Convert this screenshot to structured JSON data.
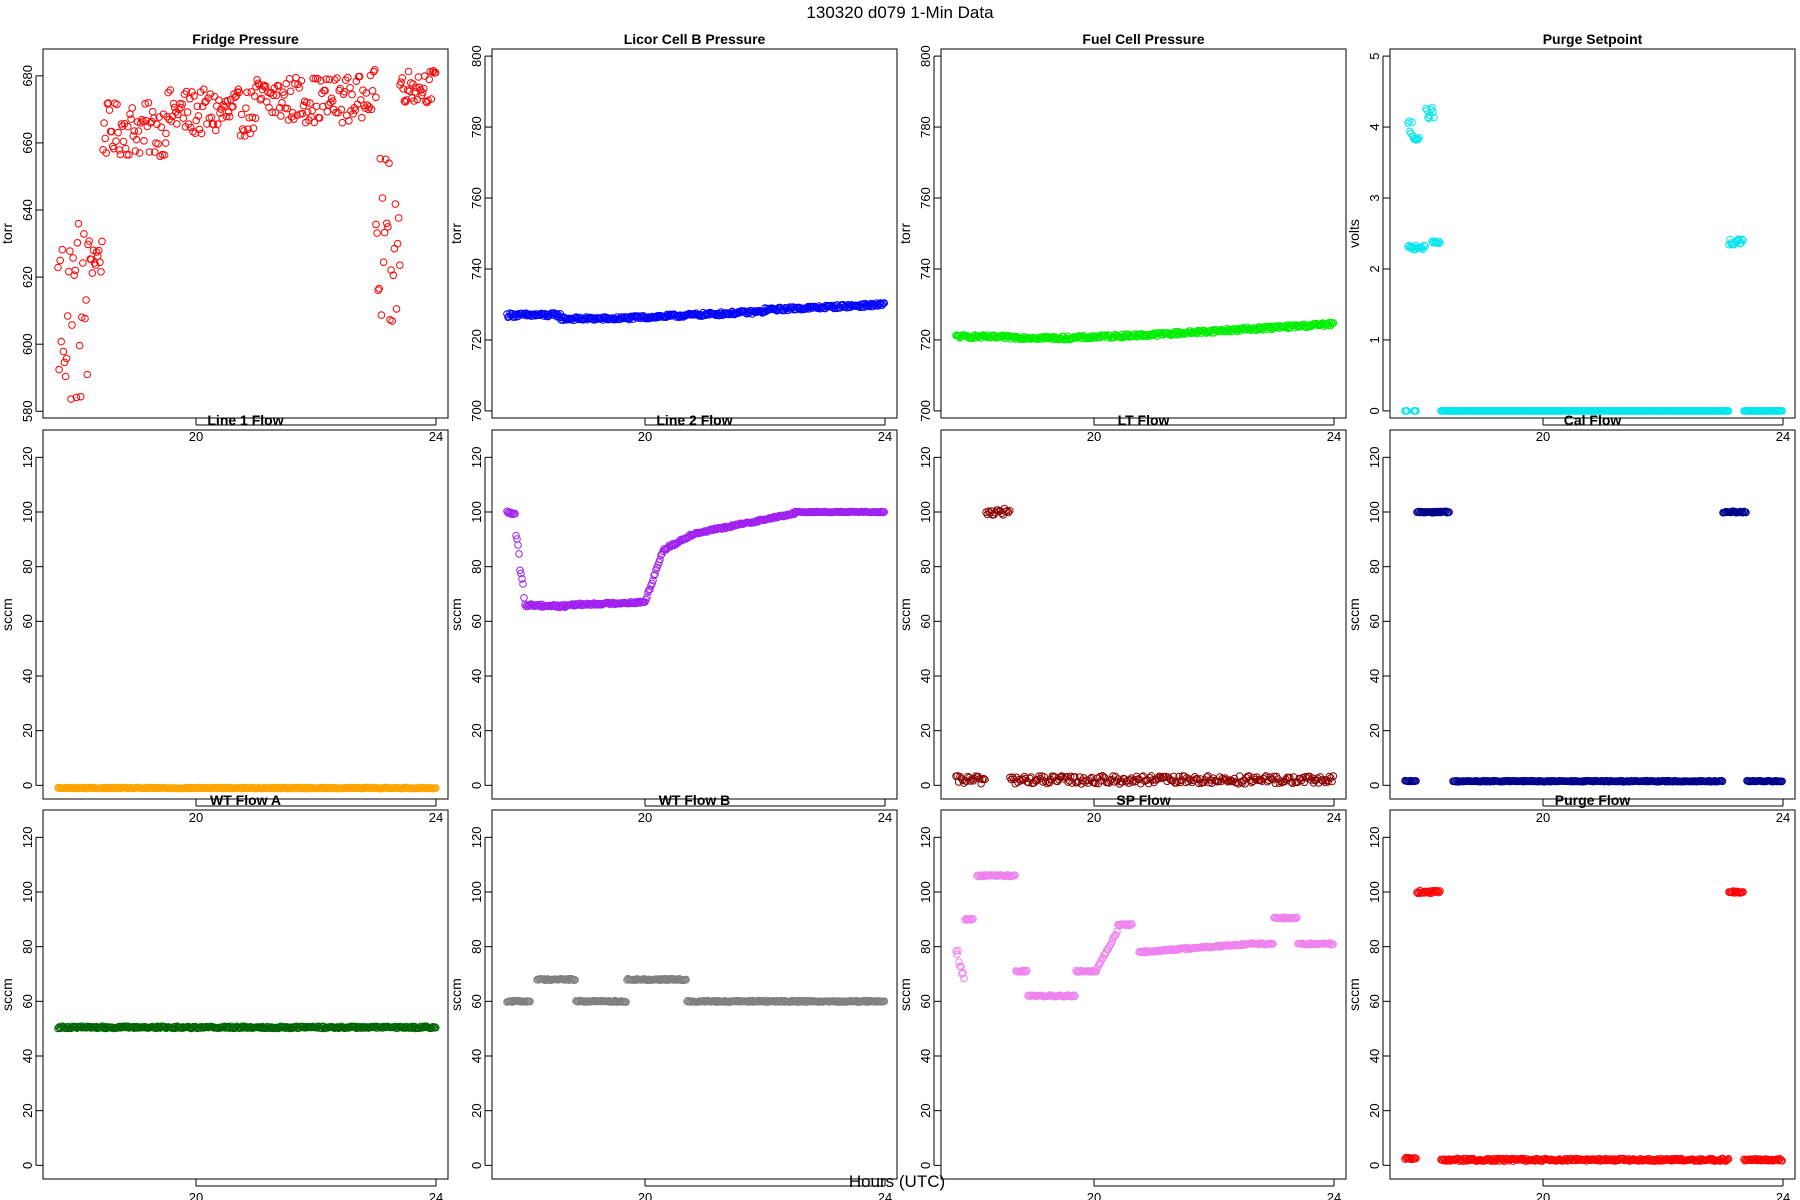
{
  "figure": {
    "title": "130320   d079   1-Min Data",
    "xlabel": "Hours (UTC)"
  },
  "chart_data": [
    {
      "type": "scatter",
      "title": "Fridge Pressure",
      "ylabel": "torr",
      "xlim": [
        17.45,
        24.2
      ],
      "ylim": [
        578,
        688
      ],
      "xticks": [
        20,
        24
      ],
      "yticks": [
        580,
        600,
        620,
        640,
        660,
        680
      ],
      "color": "#ff0000",
      "series": [
        {
          "segments": [
            {
              "x0": 17.7,
              "x1": 18.2,
              "y": 610,
              "noise": 30
            },
            {
              "x0": 18.2,
              "x1": 18.45,
              "y": 626,
              "noise": 6
            },
            {
              "x0": 18.45,
              "x1": 19.5,
              "y": 664,
              "noise": 8
            },
            {
              "x0": 19.5,
              "x1": 21.0,
              "y": 669,
              "noise": 7
            },
            {
              "x0": 21.0,
              "x1": 22.8,
              "y": 673,
              "noise": 7
            },
            {
              "x0": 22.8,
              "x1": 23.0,
              "y": 676,
              "noise": 6
            },
            {
              "x0": 23.0,
              "x1": 23.4,
              "y": 630,
              "noise": 26
            },
            {
              "x0": 23.4,
              "x1": 24.0,
              "y": 677,
              "noise": 5
            }
          ],
          "step": 0.018
        }
      ]
    },
    {
      "type": "scatter",
      "title": "Licor Cell B Pressure",
      "ylabel": "torr",
      "xlim": [
        17.45,
        24.2
      ],
      "ylim": [
        698,
        802
      ],
      "xticks": [
        20,
        24
      ],
      "yticks": [
        700,
        720,
        740,
        760,
        780,
        800
      ],
      "color": "#0000ff",
      "series": [
        {
          "segments": [
            {
              "x0": 17.7,
              "x1": 18.6,
              "y0": 727,
              "y1": 727,
              "noise": 0.6
            },
            {
              "x0": 18.6,
              "x1": 19.5,
              "y0": 726,
              "y1": 726,
              "noise": 0.5
            },
            {
              "x0": 19.5,
              "x1": 22.0,
              "y0": 726,
              "y1": 728,
              "noise": 0.5
            },
            {
              "x0": 22.0,
              "x1": 24.0,
              "y0": 728.5,
              "y1": 730,
              "noise": 0.5
            }
          ],
          "step": 0.0167
        }
      ]
    },
    {
      "type": "scatter",
      "title": "Fuel Cell Pressure",
      "ylabel": "torr",
      "xlim": [
        17.45,
        24.2
      ],
      "ylim": [
        698,
        802
      ],
      "xticks": [
        20,
        24
      ],
      "yticks": [
        700,
        720,
        740,
        760,
        780,
        800
      ],
      "color": "#00ee00",
      "series": [
        {
          "segments": [
            {
              "x0": 17.7,
              "x1": 19.5,
              "y0": 721,
              "y1": 720.5,
              "noise": 0.5
            },
            {
              "x0": 19.5,
              "x1": 21.0,
              "y0": 720.5,
              "y1": 721.5,
              "noise": 0.5
            },
            {
              "x0": 21.0,
              "x1": 24.0,
              "y0": 721.5,
              "y1": 724.5,
              "noise": 0.5
            }
          ],
          "step": 0.0167
        }
      ]
    },
    {
      "type": "scatter",
      "title": "Purge Setpoint",
      "ylabel": "volts",
      "xlim": [
        17.45,
        24.2
      ],
      "ylim": [
        -0.1,
        5.1
      ],
      "xticks": [
        20,
        24
      ],
      "yticks": [
        0,
        1,
        2,
        3,
        4,
        5
      ],
      "color": "#00e5ee",
      "series": [
        {
          "segments": [
            {
              "x0": 17.7,
              "x1": 17.75,
              "y": 0,
              "noise": 0
            },
            {
              "x0": 17.85,
              "x1": 17.9,
              "y": 0,
              "noise": 0
            },
            {
              "x0": 17.75,
              "x1": 17.85,
              "y": 4.0,
              "noise": 0.15
            },
            {
              "x0": 17.85,
              "x1": 17.95,
              "y": 3.85,
              "noise": 0.05
            },
            {
              "x0": 17.75,
              "x1": 18.05,
              "y": 2.3,
              "noise": 0.03
            },
            {
              "x0": 18.05,
              "x1": 18.2,
              "y": 4.2,
              "noise": 0.08
            },
            {
              "x0": 18.15,
              "x1": 18.3,
              "y": 2.37,
              "noise": 0.03
            },
            {
              "x0": 18.3,
              "x1": 23.1,
              "y": 0,
              "noise": 0
            },
            {
              "x0": 23.1,
              "x1": 23.35,
              "y": 2.38,
              "noise": 0.05
            },
            {
              "x0": 23.35,
              "x1": 24.0,
              "y": 0,
              "noise": 0
            }
          ],
          "step": 0.0167
        }
      ]
    },
    {
      "type": "scatter",
      "title": "Line 1 Flow",
      "ylabel": "sccm",
      "xlim": [
        17.45,
        24.2
      ],
      "ylim": [
        -5,
        130
      ],
      "xticks": [
        20,
        24
      ],
      "yticks": [
        0,
        20,
        40,
        60,
        80,
        100,
        120
      ],
      "color": "#ffa500",
      "series": [
        {
          "segments": [
            {
              "x0": 17.7,
              "x1": 24.0,
              "y": -1,
              "noise": 0.2
            }
          ],
          "step": 0.0167
        }
      ]
    },
    {
      "type": "scatter",
      "title": "Line 2 Flow",
      "ylabel": "sccm",
      "xlim": [
        17.45,
        24.2
      ],
      "ylim": [
        -5,
        130
      ],
      "xticks": [
        20,
        24
      ],
      "yticks": [
        0,
        20,
        40,
        60,
        80,
        100,
        120
      ],
      "color": "#a020f0",
      "series": [
        {
          "segments": [
            {
              "x0": 17.7,
              "x1": 17.85,
              "y0": 100,
              "y1": 99,
              "noise": 0.3
            },
            {
              "x0": 17.85,
              "x1": 18.0,
              "y0": 92,
              "y1": 66,
              "noise": 2
            },
            {
              "x0": 18.0,
              "x1": 18.7,
              "y0": 66,
              "y1": 65.5,
              "noise": 0.6
            },
            {
              "x0": 18.7,
              "x1": 20.0,
              "y0": 66,
              "y1": 67,
              "noise": 0.4
            },
            {
              "x0": 20.0,
              "x1": 20.3,
              "y0": 67,
              "y1": 86,
              "noise": 0.6
            },
            {
              "x0": 20.3,
              "x1": 20.8,
              "y0": 86,
              "y1": 92,
              "noise": 0.5
            },
            {
              "x0": 20.8,
              "x1": 22.5,
              "y0": 92,
              "y1": 99.5,
              "noise": 0.4
            },
            {
              "x0": 22.5,
              "x1": 24.0,
              "y0": 100,
              "y1": 100,
              "noise": 0.2
            }
          ],
          "step": 0.0167
        }
      ]
    },
    {
      "type": "scatter",
      "title": "LT Flow",
      "ylabel": "sccm",
      "xlim": [
        17.45,
        24.2
      ],
      "ylim": [
        -5,
        130
      ],
      "xticks": [
        20,
        24
      ],
      "yticks": [
        0,
        20,
        40,
        60,
        80,
        100,
        120
      ],
      "color": "#8b0000",
      "series": [
        {
          "segments": [
            {
              "x0": 17.7,
              "x1": 18.2,
              "y": 2,
              "noise": 1.5
            },
            {
              "x0": 18.2,
              "x1": 18.6,
              "y": 100,
              "noise": 1.5
            },
            {
              "x0": 18.6,
              "x1": 24.0,
              "y": 2,
              "noise": 1.5
            }
          ],
          "step": 0.022
        }
      ]
    },
    {
      "type": "scatter",
      "title": "Cal Flow",
      "ylabel": "sccm",
      "xlim": [
        17.45,
        24.2
      ],
      "ylim": [
        -5,
        130
      ],
      "xticks": [
        20,
        24
      ],
      "yticks": [
        0,
        20,
        40,
        60,
        80,
        100,
        120
      ],
      "color": "#00008b",
      "series": [
        {
          "segments": [
            {
              "x0": 17.7,
              "x1": 17.9,
              "y": 1.5,
              "noise": 0.2
            },
            {
              "x0": 17.9,
              "x1": 18.45,
              "y": 100,
              "noise": 0.3
            },
            {
              "x0": 18.5,
              "x1": 23.0,
              "y": 1.5,
              "noise": 0.2
            },
            {
              "x0": 23.0,
              "x1": 23.4,
              "y": 100,
              "noise": 0.3
            },
            {
              "x0": 23.4,
              "x1": 24.0,
              "y": 1.5,
              "noise": 0.2
            }
          ],
          "step": 0.0167
        }
      ]
    },
    {
      "type": "scatter",
      "title": "WT Flow A",
      "ylabel": "sccm",
      "xlim": [
        17.45,
        24.2
      ],
      "ylim": [
        -5,
        130
      ],
      "xticks": [
        20,
        24
      ],
      "yticks": [
        0,
        20,
        40,
        60,
        80,
        100,
        120
      ],
      "color": "#006400",
      "series": [
        {
          "segments": [
            {
              "x0": 17.7,
              "x1": 24.0,
              "y": 50.5,
              "noise": 0.4
            }
          ],
          "step": 0.0167
        }
      ]
    },
    {
      "type": "scatter",
      "title": "WT Flow B",
      "ylabel": "sccm",
      "xlim": [
        17.45,
        24.2
      ],
      "ylim": [
        -5,
        130
      ],
      "xticks": [
        20,
        24
      ],
      "yticks": [
        0,
        20,
        40,
        60,
        80,
        100,
        120
      ],
      "color": "#808080",
      "series": [
        {
          "segments": [
            {
              "x0": 17.7,
              "x1": 18.1,
              "y": 60,
              "noise": 0.3
            },
            {
              "x0": 18.2,
              "x1": 18.85,
              "y": 68,
              "noise": 0.3
            },
            {
              "x0": 18.85,
              "x1": 19.7,
              "y": 60,
              "noise": 0.3
            },
            {
              "x0": 19.7,
              "x1": 20.7,
              "y": 68,
              "noise": 0.3
            },
            {
              "x0": 20.7,
              "x1": 24.0,
              "y": 60,
              "noise": 0.3
            }
          ],
          "step": 0.0167
        }
      ]
    },
    {
      "type": "scatter",
      "title": "SP Flow",
      "ylabel": "sccm",
      "xlim": [
        17.45,
        24.2
      ],
      "ylim": [
        -5,
        130
      ],
      "xticks": [
        20,
        24
      ],
      "yticks": [
        0,
        20,
        40,
        60,
        80,
        100,
        120
      ],
      "color": "#ee82ee",
      "series": [
        {
          "segments": [
            {
              "x0": 17.7,
              "x1": 17.85,
              "y0": 80,
              "y1": 66,
              "noise": 2
            },
            {
              "x0": 17.85,
              "x1": 18.0,
              "y": 90,
              "noise": 0.3
            },
            {
              "x0": 18.05,
              "x1": 18.7,
              "y": 106,
              "noise": 0.3
            },
            {
              "x0": 18.7,
              "x1": 18.9,
              "y": 71,
              "noise": 0.3
            },
            {
              "x0": 18.9,
              "x1": 19.7,
              "y": 62,
              "noise": 0.3
            },
            {
              "x0": 19.7,
              "x1": 20.05,
              "y": 71,
              "noise": 0.3
            },
            {
              "x0": 20.05,
              "x1": 20.4,
              "y0": 72,
              "y1": 86,
              "noise": 0.5
            },
            {
              "x0": 20.4,
              "x1": 20.65,
              "y": 88,
              "noise": 0.3
            },
            {
              "x0": 20.75,
              "x1": 22.6,
              "y0": 78,
              "y1": 81,
              "noise": 0.3
            },
            {
              "x0": 22.6,
              "x1": 23.0,
              "y": 81,
              "noise": 0.3
            },
            {
              "x0": 23.0,
              "x1": 23.4,
              "y": 90.5,
              "noise": 0.3
            },
            {
              "x0": 23.4,
              "x1": 24.0,
              "y": 81,
              "noise": 0.3
            }
          ],
          "step": 0.0167
        }
      ]
    },
    {
      "type": "scatter",
      "title": "Purge Flow",
      "ylabel": "sccm",
      "xlim": [
        17.45,
        24.2
      ],
      "ylim": [
        -5,
        130
      ],
      "xticks": [
        20,
        24
      ],
      "yticks": [
        0,
        20,
        40,
        60,
        80,
        100,
        120
      ],
      "color": "#ff0000",
      "series": [
        {
          "segments": [
            {
              "x0": 17.7,
              "x1": 17.9,
              "y": 2.5,
              "noise": 0.3
            },
            {
              "x0": 17.9,
              "x1": 18.3,
              "y": 100,
              "noise": 0.5
            },
            {
              "x0": 18.3,
              "x1": 23.1,
              "y": 2,
              "noise": 0.5
            },
            {
              "x0": 23.1,
              "x1": 23.35,
              "y": 100,
              "noise": 0.4
            },
            {
              "x0": 23.35,
              "x1": 24.0,
              "y": 2,
              "noise": 0.4
            }
          ],
          "step": 0.0167
        }
      ]
    }
  ]
}
